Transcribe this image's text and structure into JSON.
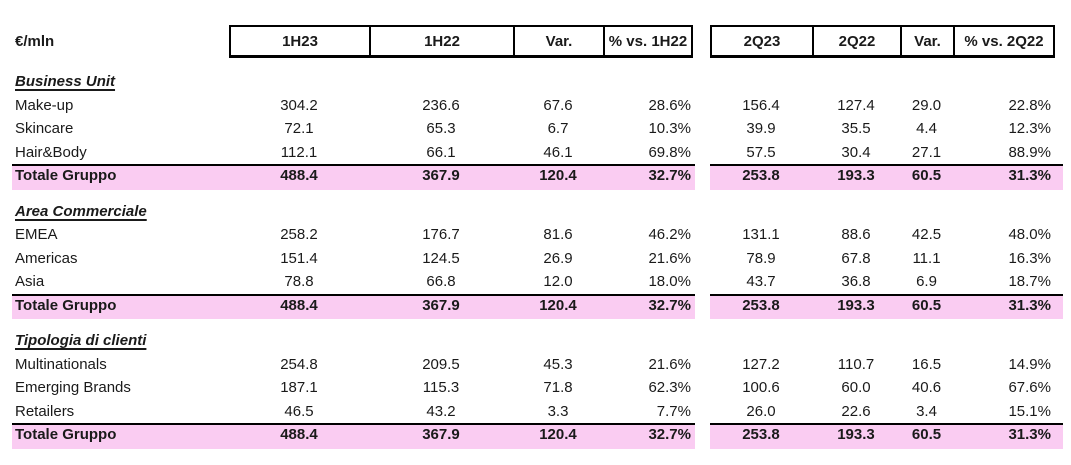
{
  "chart_data": {
    "type": "table",
    "unit_label": "€/mln",
    "header": {
      "group1": [
        "1H23",
        "1H22",
        "Var.",
        "% vs. 1H22"
      ],
      "group2": [
        "2Q23",
        "2Q22",
        "Var.",
        "% vs. 2Q22"
      ]
    },
    "sections": [
      {
        "title": "Business Unit",
        "rows": [
          {
            "label": "Make-up",
            "values": [
              "304.2",
              "236.6",
              "67.6",
              "28.6%",
              "156.4",
              "127.4",
              "29.0",
              "22.8%"
            ]
          },
          {
            "label": "Skincare",
            "values": [
              "72.1",
              "65.3",
              "6.7",
              "10.3%",
              "39.9",
              "35.5",
              "4.4",
              "12.3%"
            ]
          },
          {
            "label": "Hair&Body",
            "values": [
              "112.1",
              "66.1",
              "46.1",
              "69.8%",
              "57.5",
              "30.4",
              "27.1",
              "88.9%"
            ]
          },
          {
            "label": "Totale Gruppo",
            "values": [
              "488.4",
              "367.9",
              "120.4",
              "32.7%",
              "253.8",
              "193.3",
              "60.5",
              "31.3%"
            ]
          }
        ]
      },
      {
        "title": "Area Commerciale",
        "rows": [
          {
            "label": "EMEA",
            "values": [
              "258.2",
              "176.7",
              "81.6",
              "46.2%",
              "131.1",
              "88.6",
              "42.5",
              "48.0%"
            ]
          },
          {
            "label": "Americas",
            "values": [
              "151.4",
              "124.5",
              "26.9",
              "21.6%",
              "78.9",
              "67.8",
              "11.1",
              "16.3%"
            ]
          },
          {
            "label": "Asia",
            "values": [
              "78.8",
              "66.8",
              "12.0",
              "18.0%",
              "43.7",
              "36.8",
              "6.9",
              "18.7%"
            ]
          },
          {
            "label": "Totale Gruppo",
            "values": [
              "488.4",
              "367.9",
              "120.4",
              "32.7%",
              "253.8",
              "193.3",
              "60.5",
              "31.3%"
            ]
          }
        ]
      },
      {
        "title": "Tipologia di clienti",
        "rows": [
          {
            "label": "Multinationals",
            "values": [
              "254.8",
              "209.5",
              "45.3",
              "21.6%",
              "127.2",
              "110.7",
              "16.5",
              "14.9%"
            ]
          },
          {
            "label": "Emerging Brands",
            "values": [
              "187.1",
              "115.3",
              "71.8",
              "62.3%",
              "100.6",
              "60.0",
              "40.6",
              "67.6%"
            ]
          },
          {
            "label": "Retailers",
            "values": [
              "46.5",
              "43.2",
              "3.3",
              "7.7%",
              "26.0",
              "22.6",
              "3.4",
              "15.1%"
            ]
          },
          {
            "label": "Totale Gruppo",
            "values": [
              "488.4",
              "367.9",
              "120.4",
              "32.7%",
              "253.8",
              "193.3",
              "60.5",
              "31.3%"
            ]
          }
        ]
      }
    ]
  },
  "colors": {
    "highlight_pink": "#faccf2",
    "border_black": "#000000",
    "text": "#1a1a1a",
    "background": "#ffffff"
  }
}
